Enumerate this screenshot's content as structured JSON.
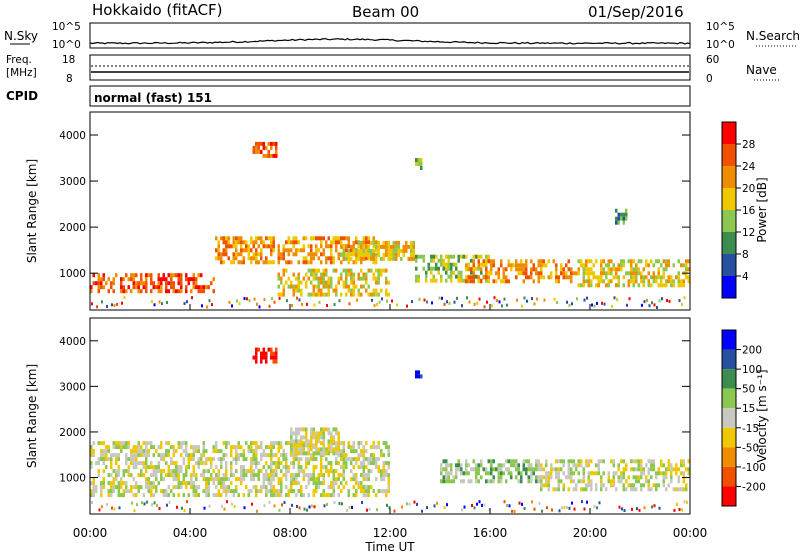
{
  "header": {
    "title": "Hokkaido (fitACF)",
    "beam": "Beam 00",
    "date": "01/Sep/2016"
  },
  "sky_panel": {
    "left_label": "N.Sky",
    "right_label": "N.Search",
    "left_ticks": [
      "10^5",
      "10^0"
    ],
    "right_ticks": [
      "10^5",
      "10^0"
    ]
  },
  "freq_panel": {
    "left_label_1": "Freq.",
    "left_label_2": "[MHz]",
    "right_label": "Nave",
    "left_ticks": [
      "18",
      "8"
    ],
    "right_ticks": [
      "60",
      "0"
    ]
  },
  "cpid_panel": {
    "label": "CPID",
    "text": "normal (fast) 151"
  },
  "colors": {
    "power": [
      "#0000ff",
      "#2850a0",
      "#3c8c50",
      "#8cc850",
      "#f0c800",
      "#f08c00",
      "#f05000",
      "#ff0000"
    ],
    "velocity": [
      "#ff0000",
      "#f05000",
      "#f08c00",
      "#f0c800",
      "#c8c8c0",
      "#8cc850",
      "#3c8c50",
      "#2850a0",
      "#0000ff"
    ],
    "ground": "#c8c8c0"
  },
  "chart_data": [
    {
      "type": "heatmap",
      "name": "Power",
      "ylabel": "Slant Range [km]",
      "colorbar_label": "Power [dB]",
      "colorbar_ticks": [
        "4",
        "8",
        "12",
        "16",
        "20",
        "24",
        "28"
      ],
      "xlim": [
        "00:00",
        "24:00"
      ],
      "ylim": [
        200,
        4500
      ],
      "y_ticks": [
        "1000",
        "2000",
        "3000",
        "4000"
      ],
      "bands": [
        {
          "t0": 0.0,
          "t1": 5.0,
          "r0": 650,
          "r1": 1000,
          "level": 6
        },
        {
          "t0": 5.0,
          "t1": 11.5,
          "r0": 1250,
          "r1": 1800,
          "level": 5
        },
        {
          "t0": 7.5,
          "t1": 12.0,
          "r0": 500,
          "r1": 1100,
          "level": 4
        },
        {
          "t0": 10.0,
          "t1": 13.0,
          "r0": 1300,
          "r1": 1700,
          "level": 4
        },
        {
          "t0": 13.0,
          "t1": 16.0,
          "r0": 800,
          "r1": 1400,
          "level": 3
        },
        {
          "t0": 15.0,
          "t1": 19.5,
          "r0": 800,
          "r1": 1300,
          "level": 5
        },
        {
          "t0": 19.5,
          "t1": 24.0,
          "r0": 700,
          "r1": 1300,
          "level": 4
        },
        {
          "t0": 6.5,
          "t1": 7.5,
          "r0": 3550,
          "r1": 3850,
          "level": 6
        },
        {
          "t0": 21.0,
          "t1": 21.5,
          "r0": 2100,
          "r1": 2400,
          "level": 2
        },
        {
          "t0": 13.0,
          "t1": 13.3,
          "r0": 3250,
          "r1": 3500,
          "level": 3
        }
      ]
    },
    {
      "type": "heatmap",
      "name": "Velocity",
      "ylabel": "Slant Range [km]",
      "xlabel": "Time UT",
      "colorbar_label": "Velocity [m s⁻¹]",
      "colorbar_ticks": [
        "-200",
        "-100",
        "-50",
        "-15",
        "15",
        "50",
        "100",
        "200"
      ],
      "x_ticks": [
        "00:00",
        "04:00",
        "08:00",
        "12:00",
        "16:00",
        "20:00",
        "00:00"
      ],
      "xlim": [
        "00:00",
        "24:00"
      ],
      "ylim": [
        200,
        4500
      ],
      "y_ticks": [
        "1000",
        "2000",
        "3000",
        "4000"
      ],
      "bands": [
        {
          "t0": 0.0,
          "t1": 12.0,
          "r0": 600,
          "r1": 1800,
          "level": 4
        },
        {
          "t0": 8.0,
          "t1": 10.0,
          "r0": 1500,
          "r1": 2100,
          "level": 4
        },
        {
          "t0": 14.0,
          "t1": 18.0,
          "r0": 900,
          "r1": 1400,
          "level": 5
        },
        {
          "t0": 18.0,
          "t1": 24.0,
          "r0": 700,
          "r1": 1400,
          "level": 4
        },
        {
          "t0": 13.0,
          "t1": 13.3,
          "r0": 3200,
          "r1": 3350,
          "level": 8
        },
        {
          "t0": 6.5,
          "t1": 7.5,
          "r0": 3550,
          "r1": 3850,
          "level": 0
        }
      ]
    }
  ]
}
